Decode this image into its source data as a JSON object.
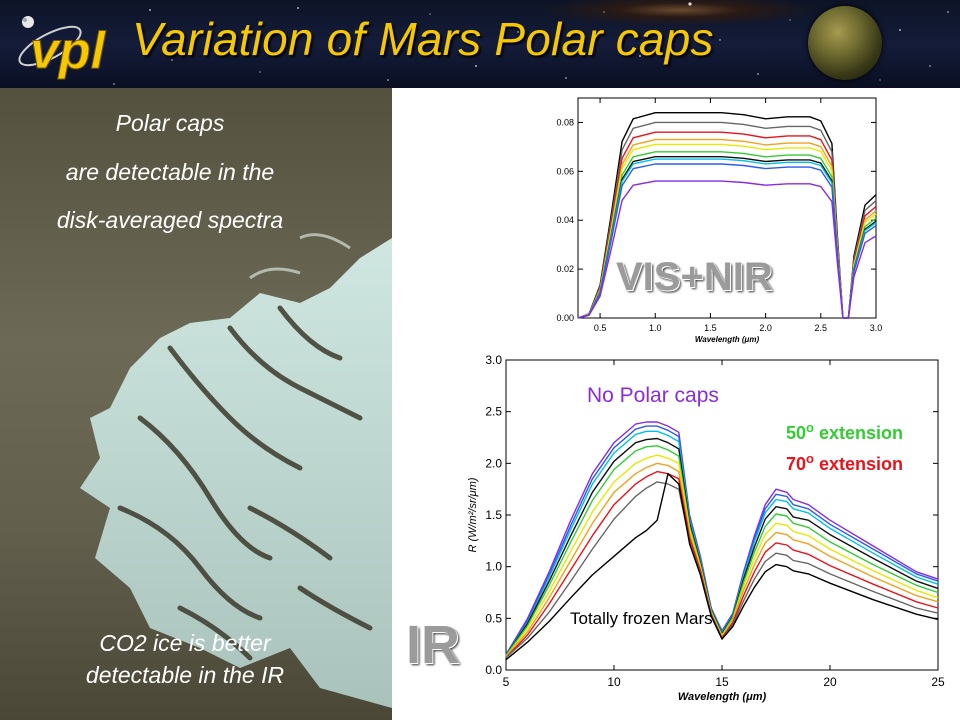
{
  "slide": {
    "title": "Variation of Mars Polar caps",
    "logo_text": "vpl",
    "photo_text": {
      "line1": "Polar caps",
      "line2": "are detectable in the",
      "line3": "disk-averaged spectra",
      "line4": "CO2 ice is better",
      "line5": "detectable in the IR"
    },
    "labels": {
      "vis_nir": "VIS+NIR",
      "ir": "IR"
    },
    "annotations": {
      "no_polar": "No Polar caps",
      "ext50_num": "50",
      "ext70_num": "70",
      "deg": "o",
      "ext_text": "extension",
      "frozen": "Totally frozen Mars"
    },
    "colors": {
      "title": "#f6c800",
      "no_polar": "#8a2be2",
      "ext50": "#33cc33",
      "ext70": "#e8131b"
    }
  },
  "chart_data": [
    {
      "type": "line",
      "xlabel": "Wavelength (μm)",
      "ylabel": "",
      "xlim": [
        0.3,
        3.0
      ],
      "ylim": [
        0.0,
        0.09
      ],
      "x_ticks": [
        "0.5",
        "1.0",
        "1.5",
        "2.0",
        "2.5",
        "3.0"
      ],
      "y_ticks": [
        "0.00",
        "0.02",
        "0.04",
        "0.06",
        "0.08"
      ],
      "series_colors": [
        "#000000",
        "#666666",
        "#e8131b",
        "#f4a020",
        "#e8e800",
        "#33cc33",
        "#111111",
        "#00bfe8",
        "#2a5cf0",
        "#8a2be2"
      ],
      "peaks": [
        0.084,
        0.08,
        0.076,
        0.073,
        0.071,
        0.068,
        0.066,
        0.065,
        0.063,
        0.056
      ],
      "x": [
        0.3,
        0.4,
        0.5,
        0.6,
        0.7,
        0.8,
        1.0,
        1.2,
        1.4,
        1.6,
        1.8,
        2.0,
        2.2,
        2.4,
        2.5,
        2.6,
        2.65,
        2.7,
        2.75,
        2.8,
        2.9,
        3.0
      ],
      "profile": [
        0.0,
        0.02,
        0.16,
        0.5,
        0.86,
        0.97,
        1.0,
        1.0,
        1.0,
        1.0,
        0.99,
        0.97,
        0.98,
        0.98,
        0.96,
        0.85,
        0.4,
        0.0,
        0.0,
        0.3,
        0.55,
        0.6
      ]
    },
    {
      "type": "line",
      "xlabel": "Wavelength (μm)",
      "ylabel": "R (W/m²/sr/μm)",
      "xlim": [
        5,
        25
      ],
      "ylim": [
        0.0,
        3.0
      ],
      "x_ticks": [
        "5",
        "10",
        "15",
        "20",
        "25"
      ],
      "y_ticks": [
        "0.0",
        "0.5",
        "1.0",
        "1.5",
        "2.0",
        "2.5",
        "3.0"
      ],
      "series_colors": [
        "#8a2be2",
        "#2a5cf0",
        "#00bfe8",
        "#111111",
        "#33cc33",
        "#e8e800",
        "#f4a020",
        "#e8131b",
        "#666666",
        "#000000"
      ],
      "x": [
        5,
        6,
        7,
        8,
        9,
        10,
        11,
        11.5,
        12,
        12.5,
        13,
        13.5,
        14,
        14.5,
        15,
        15.5,
        16,
        16.5,
        17,
        17.5,
        18,
        18.3,
        19,
        20,
        22,
        24,
        25
      ],
      "series": [
        {
          "values": [
            0.15,
            0.5,
            0.95,
            1.45,
            1.9,
            2.2,
            2.38,
            2.4,
            2.4,
            2.36,
            2.3,
            1.5,
            1.1,
            0.6,
            0.38,
            0.55,
            0.95,
            1.3,
            1.6,
            1.75,
            1.72,
            1.65,
            1.6,
            1.45,
            1.2,
            0.95,
            0.88
          ]
        },
        {
          "values": [
            0.15,
            0.48,
            0.92,
            1.4,
            1.85,
            2.15,
            2.33,
            2.36,
            2.36,
            2.32,
            2.26,
            1.48,
            1.08,
            0.6,
            0.37,
            0.54,
            0.93,
            1.27,
            1.56,
            1.7,
            1.68,
            1.6,
            1.56,
            1.41,
            1.17,
            0.93,
            0.86
          ]
        },
        {
          "values": [
            0.14,
            0.46,
            0.9,
            1.36,
            1.8,
            2.1,
            2.28,
            2.31,
            2.31,
            2.27,
            2.21,
            1.45,
            1.06,
            0.59,
            0.36,
            0.53,
            0.91,
            1.24,
            1.52,
            1.65,
            1.63,
            1.56,
            1.52,
            1.37,
            1.13,
            0.9,
            0.83
          ]
        },
        {
          "values": [
            0.14,
            0.45,
            0.86,
            1.3,
            1.72,
            2.02,
            2.2,
            2.23,
            2.24,
            2.2,
            2.14,
            1.42,
            1.04,
            0.58,
            0.35,
            0.52,
            0.88,
            1.19,
            1.46,
            1.58,
            1.56,
            1.48,
            1.45,
            1.31,
            1.08,
            0.86,
            0.79
          ]
        },
        {
          "values": [
            0.14,
            0.43,
            0.82,
            1.24,
            1.64,
            1.94,
            2.12,
            2.16,
            2.17,
            2.13,
            2.07,
            1.39,
            1.02,
            0.57,
            0.34,
            0.51,
            0.85,
            1.14,
            1.39,
            1.51,
            1.49,
            1.42,
            1.38,
            1.24,
            1.02,
            0.82,
            0.75
          ]
        },
        {
          "values": [
            0.13,
            0.4,
            0.76,
            1.15,
            1.53,
            1.82,
            2.0,
            2.05,
            2.08,
            2.05,
            2.0,
            1.36,
            1.0,
            0.56,
            0.33,
            0.49,
            0.81,
            1.08,
            1.31,
            1.42,
            1.4,
            1.34,
            1.3,
            1.17,
            0.96,
            0.77,
            0.7
          ]
        },
        {
          "values": [
            0.13,
            0.37,
            0.7,
            1.06,
            1.42,
            1.72,
            1.9,
            1.96,
            2.0,
            1.98,
            1.92,
            1.32,
            0.98,
            0.55,
            0.32,
            0.48,
            0.77,
            1.02,
            1.23,
            1.33,
            1.31,
            1.26,
            1.22,
            1.1,
            0.9,
            0.72,
            0.66
          ]
        },
        {
          "values": [
            0.12,
            0.34,
            0.64,
            0.97,
            1.3,
            1.6,
            1.8,
            1.87,
            1.92,
            1.9,
            1.85,
            1.28,
            0.96,
            0.54,
            0.31,
            0.46,
            0.72,
            0.95,
            1.14,
            1.23,
            1.21,
            1.16,
            1.12,
            1.01,
            0.83,
            0.66,
            0.6
          ]
        },
        {
          "values": [
            0.12,
            0.31,
            0.56,
            0.86,
            1.17,
            1.46,
            1.68,
            1.76,
            1.82,
            1.8,
            1.75,
            1.24,
            0.93,
            0.53,
            0.3,
            0.44,
            0.67,
            0.88,
            1.05,
            1.13,
            1.11,
            1.06,
            1.03,
            0.93,
            0.76,
            0.6,
            0.55
          ]
        },
        {
          "values": [
            0.1,
            0.27,
            0.47,
            0.7,
            0.92,
            1.1,
            1.28,
            1.35,
            1.45,
            1.9,
            1.8,
            1.22,
            0.92,
            0.52,
            0.3,
            0.42,
            0.62,
            0.8,
            0.95,
            1.02,
            1.0,
            0.96,
            0.93,
            0.84,
            0.68,
            0.54,
            0.49
          ]
        }
      ]
    }
  ]
}
